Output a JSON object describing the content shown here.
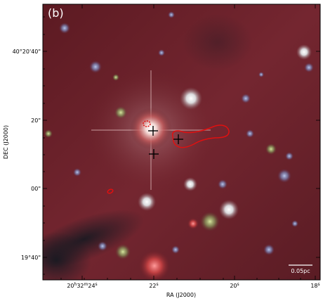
{
  "panel_label": "(b)",
  "axes": {
    "xlabel": "RA (J2000)",
    "ylabel": "DEC (J2000)",
    "x_ticks": [
      "20h32m24s",
      "22s",
      "20s",
      "18s"
    ],
    "y_ticks": [
      "40°20'40\"",
      "20\"",
      "00\"",
      "19°40\""
    ]
  },
  "scalebar": {
    "label": "0.05pc"
  },
  "markers": {
    "symbol": "+",
    "color": "#000000",
    "count": 3
  },
  "contours": {
    "color": "#e01010",
    "count": 3
  },
  "colors": {
    "background": "#6a1e24",
    "frame": "#000000",
    "contour": "#e01010"
  }
}
